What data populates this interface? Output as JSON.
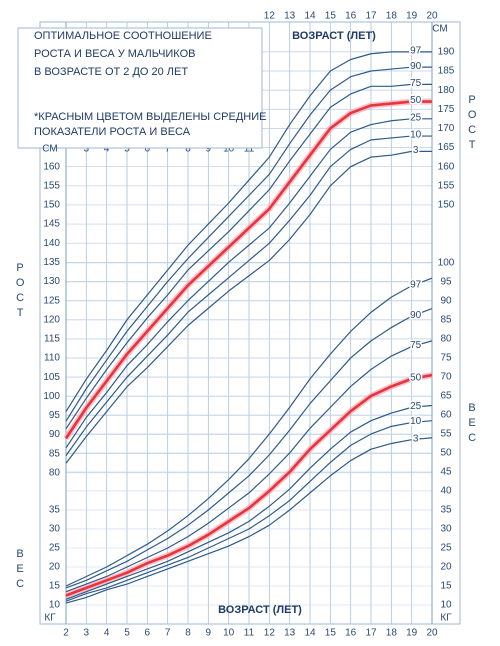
{
  "chart_data": {
    "type": "line",
    "title": [
      "ОПТИМАЛЬНОЕ СООТНОШЕНИЕ",
      "РОСТА И ВЕСА У МАЛЬЧИКОВ",
      "В ВОЗРАСТЕ ОТ 2 ДО 20 ЛЕТ"
    ],
    "note": [
      "*КРАСНЫМ ЦВЕТОМ ВЫДЕЛЕНЫ СРЕДНИЕ",
      "ПОКАЗАТЕЛИ РОСТА И ВЕСА"
    ],
    "xlabel": "ВОЗРАСТ (ЛЕТ)",
    "ylabel": "РОСТ",
    "y2label": "ВЕС",
    "yunit": "СМ",
    "y2unit": "КГ",
    "x": [
      2,
      3,
      4,
      5,
      6,
      7,
      8,
      9,
      10,
      11,
      12,
      13,
      14,
      15,
      16,
      17,
      18,
      19,
      20
    ],
    "xlim": [
      2,
      20
    ],
    "xticks": [
      2,
      3,
      4,
      5,
      6,
      7,
      8,
      9,
      10,
      11,
      12,
      13,
      14,
      15,
      16,
      17,
      18,
      19,
      20
    ],
    "ylim": [
      40.5,
      197.8
    ],
    "yticks": [
      80,
      85,
      90,
      95,
      100,
      105,
      110,
      115,
      120,
      125,
      130,
      135,
      140,
      145,
      150,
      155,
      160,
      165,
      170,
      175,
      180,
      185,
      190
    ],
    "y2lim": [
      5,
      163.4
    ],
    "y2ticks": [
      10,
      15,
      20,
      25,
      30,
      35,
      40,
      45,
      50,
      55,
      60,
      65,
      70,
      75,
      80,
      85,
      90,
      95,
      100
    ],
    "grid": true,
    "series": [
      {
        "name": "97",
        "color": "#2e5a8a",
        "values": [
          96,
          104.5,
          112,
          120,
          126.5,
          133,
          139.5,
          145,
          150.5,
          156.5,
          162.5,
          171,
          178.5,
          185,
          188,
          189.5,
          190,
          190,
          190
        ]
      },
      {
        "name": "90",
        "color": "#2e5a8a",
        "values": [
          93.5,
          102,
          109.5,
          117,
          123.5,
          130,
          136,
          141.5,
          147,
          152.5,
          158,
          166,
          173.5,
          180,
          183.5,
          185,
          185.5,
          186,
          186
        ]
      },
      {
        "name": "75",
        "color": "#2e5a8a",
        "values": [
          91.5,
          99.5,
          107,
          114,
          120.5,
          126.5,
          133,
          138,
          143,
          148.5,
          154,
          161.5,
          168.5,
          175.5,
          179,
          181,
          181,
          181.5,
          181.5
        ]
      },
      {
        "name": "50",
        "color": "#e8343f",
        "values": [
          89,
          97,
          104,
          111,
          117,
          123,
          129,
          134,
          139,
          144,
          149,
          156,
          163,
          170,
          174,
          176,
          176.5,
          177,
          177
        ]
      },
      {
        "name": "25",
        "color": "#2e5a8a",
        "values": [
          86.5,
          94.5,
          101,
          108,
          113.5,
          119.5,
          125,
          130,
          135,
          139.5,
          144,
          150.5,
          157.5,
          164.5,
          169,
          171,
          172,
          172.5,
          172.5
        ]
      },
      {
        "name": "10",
        "color": "#2e5a8a",
        "values": [
          84.5,
          92,
          98.5,
          105,
          110.5,
          116,
          122,
          126.5,
          131,
          135.5,
          140,
          146,
          152.5,
          160,
          164.5,
          167,
          167.5,
          168,
          168
        ]
      },
      {
        "name": "3",
        "color": "#2e5a8a",
        "values": [
          82.5,
          89.5,
          96,
          102.5,
          107.5,
          113,
          118.5,
          123,
          127.5,
          131.5,
          135.5,
          141,
          147.5,
          155,
          160,
          162.5,
          163,
          164,
          164
        ]
      },
      {
        "name": "97",
        "color": "#2e5a8a",
        "axis": "y2",
        "values": [
          15,
          17.5,
          20,
          23,
          26,
          29.5,
          33.5,
          38,
          43,
          48.5,
          55,
          62,
          69.5,
          76,
          82,
          87,
          91,
          94,
          96
        ]
      },
      {
        "name": "90",
        "color": "#2e5a8a",
        "axis": "y2",
        "values": [
          14.5,
          16.5,
          19,
          21.5,
          24.5,
          27.5,
          31,
          35,
          39.5,
          44,
          49.5,
          56,
          63,
          69,
          75,
          79.5,
          83,
          86,
          88
        ]
      },
      {
        "name": "75",
        "color": "#2e5a8a",
        "axis": "y2",
        "values": [
          13.5,
          15.5,
          17.5,
          20,
          22.5,
          25,
          28,
          31.5,
          35.5,
          39.5,
          44.5,
          50,
          56.5,
          62,
          67.5,
          72,
          75.5,
          78,
          79.5
        ]
      },
      {
        "name": "50",
        "color": "#e8343f",
        "axis": "y2",
        "values": [
          12.5,
          14.5,
          16.5,
          18.5,
          21,
          23,
          25.5,
          28.5,
          32,
          35.5,
          40,
          45,
          51,
          56,
          61,
          65,
          67.5,
          69.5,
          70.5
        ]
      },
      {
        "name": "25",
        "color": "#2e5a8a",
        "axis": "y2",
        "values": [
          11.5,
          13.5,
          15.5,
          17.5,
          19.5,
          21.5,
          24,
          26.5,
          29,
          32,
          36,
          40.5,
          46,
          51,
          55.5,
          58.5,
          60.5,
          62,
          62.5
        ]
      },
      {
        "name": "10",
        "color": "#2e5a8a",
        "axis": "y2",
        "values": [
          11,
          13,
          14.5,
          16.5,
          18.5,
          20.5,
          22.5,
          25,
          27.5,
          30,
          33.5,
          37.5,
          42.5,
          47.5,
          52,
          55,
          57,
          58,
          58.5
        ]
      },
      {
        "name": "3",
        "color": "#2e5a8a",
        "axis": "y2",
        "values": [
          10.5,
          12,
          14,
          15.5,
          17.5,
          19.5,
          21.5,
          23.5,
          25.5,
          28,
          31,
          35,
          39.5,
          44,
          48,
          51,
          52.5,
          53.5,
          54
        ]
      }
    ]
  }
}
